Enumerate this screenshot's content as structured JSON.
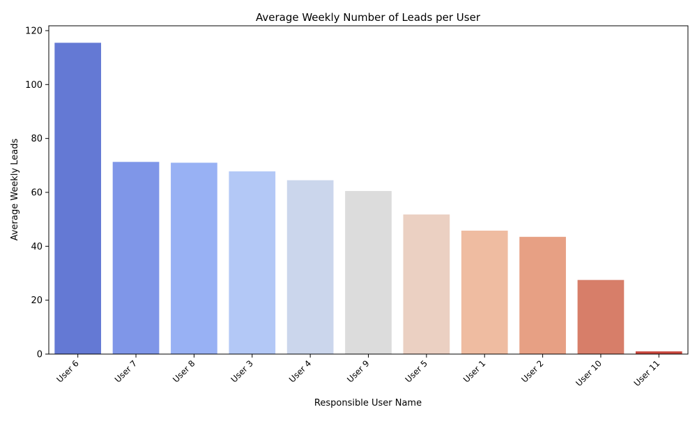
{
  "chart_data": {
    "type": "bar",
    "title": "Average Weekly Number of Leads per User",
    "xlabel": "Responsible User Name",
    "ylabel": "Average Weekly Leads",
    "categories": [
      "User 6",
      "User 7",
      "User 8",
      "User 3",
      "User 4",
      "User 9",
      "User 5",
      "User 1",
      "User 2",
      "User 10",
      "User 11"
    ],
    "values": [
      115.5,
      71.3,
      71.0,
      67.8,
      64.5,
      60.5,
      51.8,
      45.8,
      43.5,
      27.5,
      1.0
    ],
    "colors": [
      "#6479d4",
      "#7f96e8",
      "#98b1f4",
      "#b3c8f6",
      "#cbd6ec",
      "#dcdcdc",
      "#ebd0c2",
      "#efbca1",
      "#e7a084",
      "#d77e69",
      "#c8463c"
    ],
    "yticks": [
      0,
      20,
      40,
      60,
      80,
      100,
      120
    ],
    "ylim": [
      0,
      121.8
    ],
    "grid": false,
    "legend": "none"
  }
}
